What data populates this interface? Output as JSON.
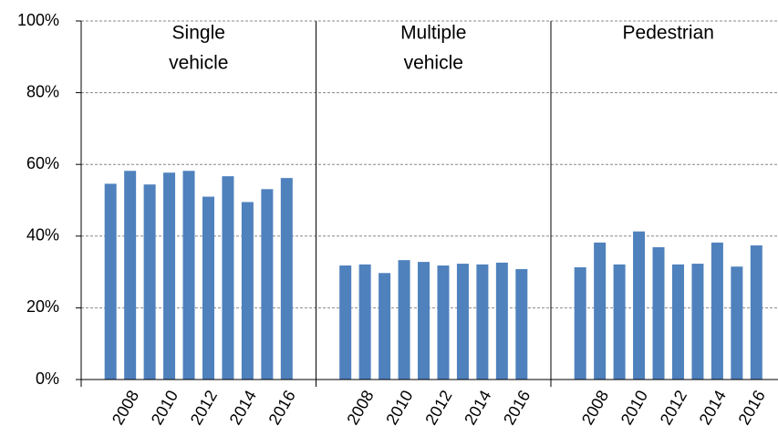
{
  "chart_data": {
    "type": "bar",
    "color": "#4f81bd",
    "grid": true,
    "ylim": [
      0,
      100
    ],
    "yticks": [
      {
        "value": 0,
        "label": "0%"
      },
      {
        "value": 20,
        "label": "20%"
      },
      {
        "value": 40,
        "label": "40%"
      },
      {
        "value": 60,
        "label": "60%"
      },
      {
        "value": 80,
        "label": "80%"
      },
      {
        "value": 100,
        "label": "100%"
      }
    ],
    "panels": [
      {
        "title": [
          "Single",
          "vehicle"
        ],
        "categories": [
          null,
          "2008",
          null,
          "2010",
          null,
          "2012",
          null,
          "2014",
          null,
          "2016"
        ],
        "values": [
          54.6,
          58.2,
          54.4,
          57.7,
          58.2,
          51.0,
          56.7,
          49.5,
          53.1,
          56.2
        ]
      },
      {
        "title": [
          "Multiple",
          "vehicle"
        ],
        "categories": [
          null,
          "2008",
          null,
          "2010",
          null,
          "2012",
          null,
          "2014",
          null,
          "2016"
        ],
        "values": [
          31.8,
          32.1,
          29.7,
          33.3,
          32.8,
          31.8,
          32.3,
          32.1,
          32.6,
          30.8
        ]
      },
      {
        "title": [
          "Pedestrian"
        ],
        "categories": [
          null,
          "2008",
          null,
          "2010",
          null,
          "2012",
          null,
          "2014",
          null,
          "2016"
        ],
        "values": [
          31.3,
          38.2,
          32.1,
          41.3,
          36.9,
          32.1,
          32.3,
          38.2,
          31.5,
          37.4
        ]
      }
    ]
  }
}
